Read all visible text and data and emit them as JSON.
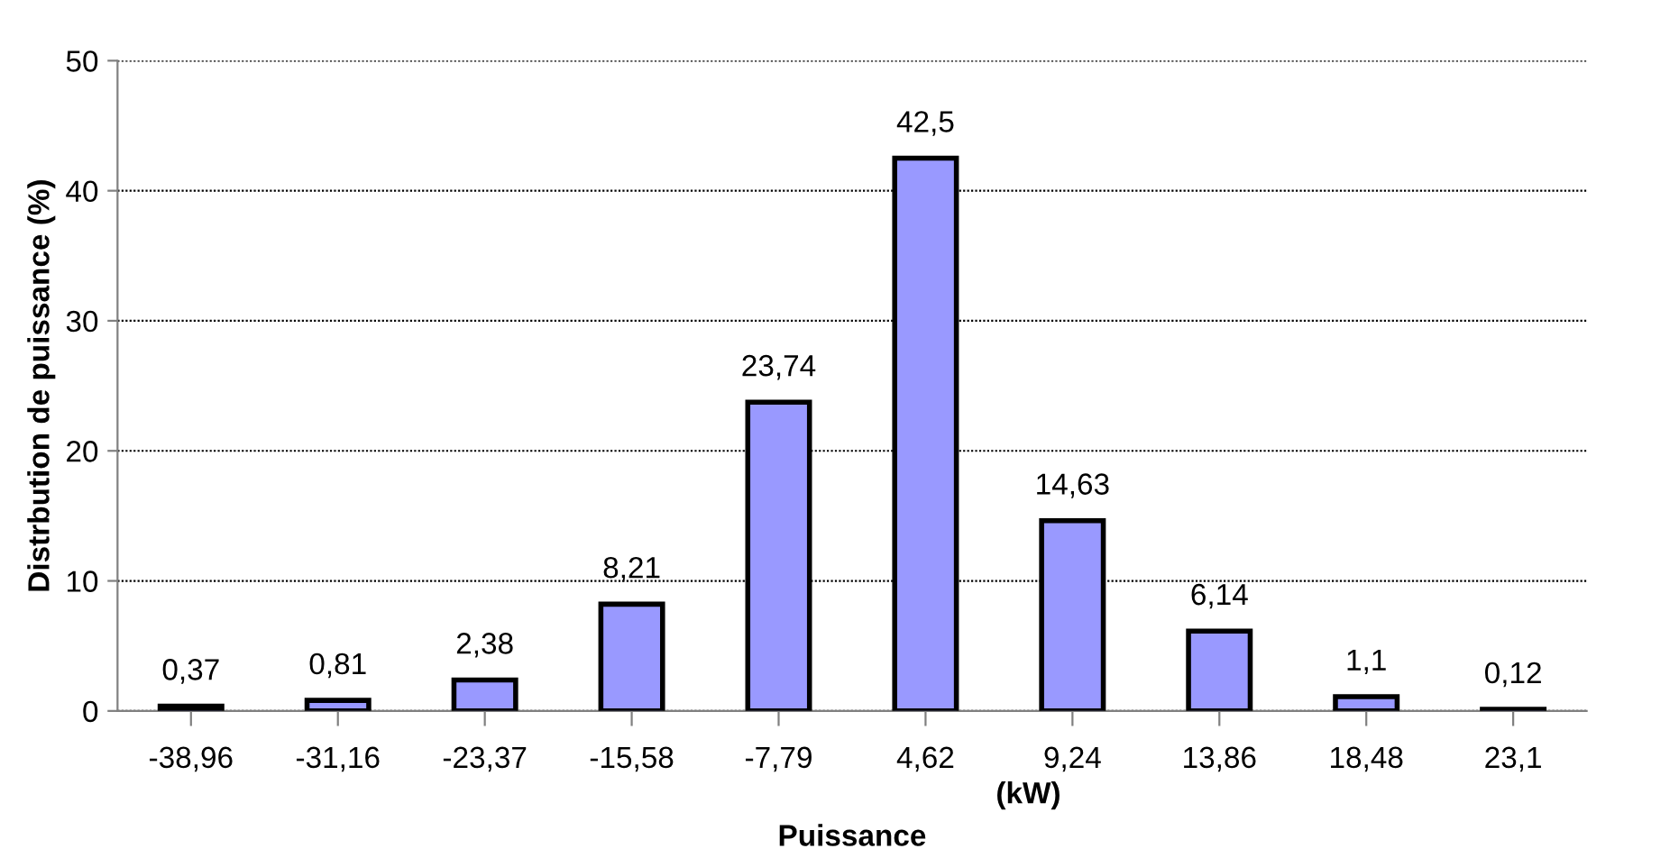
{
  "chart_data": {
    "type": "bar",
    "xlabel": "Puissance",
    "ylabel": "Distrbution de puissance (%)",
    "annotations": [
      "(kW)"
    ],
    "categories": [
      "-38,96",
      "-31,16",
      "-23,37",
      "-15,58",
      "-7,79",
      "4,62",
      "9,24",
      "13,86",
      "18,48",
      "23,1"
    ],
    "values": [
      0.37,
      0.81,
      2.38,
      8.21,
      23.74,
      42.5,
      14.63,
      6.14,
      1.1,
      0.12
    ],
    "value_labels": [
      "0,37",
      "0,81",
      "2,38",
      "8,21",
      "23,74",
      "42,5",
      "14,63",
      "6,14",
      "1,1",
      "0,12"
    ],
    "color": "#9999ff",
    "ylim": [
      0,
      50
    ],
    "yticks": [
      0,
      10,
      20,
      30,
      40,
      50
    ],
    "grid": "y",
    "legend": false
  }
}
